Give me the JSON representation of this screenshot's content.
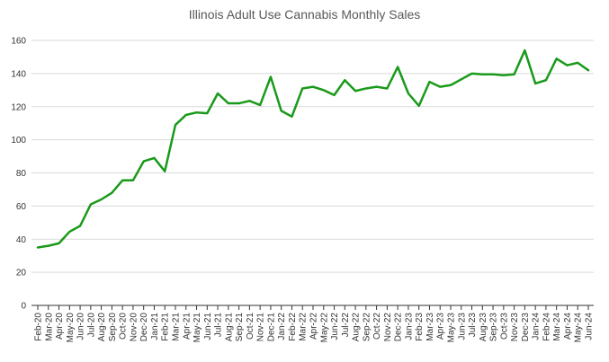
{
  "chart_data": {
    "type": "line",
    "title": "Illinois Adult Use Cannabis Monthly Sales",
    "xlabel": "",
    "ylabel": "",
    "ylim": [
      0,
      160
    ],
    "yticks": [
      0,
      20,
      40,
      60,
      80,
      100,
      120,
      140,
      160
    ],
    "grid": true,
    "legend": "none",
    "line_color": "#1a9a1a",
    "categories": [
      "Feb-20",
      "Mar-20",
      "Apr-20",
      "May-20",
      "Jun-20",
      "Jul-20",
      "Aug-20",
      "Sep-20",
      "Oct-20",
      "Nov-20",
      "Dec-20",
      "Jan-21",
      "Feb-21",
      "Mar-21",
      "Apr-21",
      "May-21",
      "Jun-21",
      "Jul-21",
      "Aug-21",
      "Sep-21",
      "Oct-21",
      "Nov-21",
      "Dec-21",
      "Jan-22",
      "Feb-22",
      "Mar-22",
      "Apr-22",
      "May-22",
      "Jun-22",
      "Jul-22",
      "Aug-22",
      "Sep-22",
      "Oct-22",
      "Nov-22",
      "Dec-22",
      "Jan-23",
      "Feb-23",
      "Mar-23",
      "Apr-23",
      "May-23",
      "Jun-23",
      "Jul-23",
      "Aug-23",
      "Sep-23",
      "Oct-23",
      "Nov-23",
      "Dec-23",
      "Jan-24",
      "Feb-24",
      "Mar-24",
      "Apr-24",
      "May-24",
      "Jun-24"
    ],
    "series": [
      {
        "values": [
          35,
          36,
          37.5,
          44.5,
          48,
          61,
          64,
          68,
          75.5,
          75.5,
          87,
          89,
          81,
          109,
          115,
          116.5,
          116,
          128,
          122,
          122,
          123.5,
          121,
          138,
          117.5,
          114,
          131,
          132,
          130,
          127,
          136,
          129.5,
          131,
          132,
          131,
          144,
          128,
          120.5,
          135,
          132,
          133,
          136.5,
          140,
          139.5,
          139.5,
          139,
          139.5,
          154,
          134,
          136,
          149,
          145,
          146.5,
          142
        ]
      }
    ]
  }
}
